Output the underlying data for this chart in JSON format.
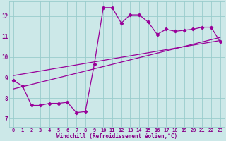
{
  "xlabel": "Windchill (Refroidissement éolien,°C)",
  "x_ticks": [
    0,
    1,
    2,
    3,
    4,
    5,
    6,
    7,
    8,
    9,
    10,
    11,
    12,
    13,
    14,
    15,
    16,
    17,
    18,
    19,
    20,
    21,
    22,
    23
  ],
  "y_ticks": [
    7,
    8,
    9,
    10,
    11,
    12
  ],
  "xlim": [
    -0.5,
    23.5
  ],
  "ylim": [
    6.6,
    12.7
  ],
  "bg_color": "#cce8e8",
  "line_color": "#990099",
  "marker": "D",
  "markersize": 2.2,
  "linewidth": 0.9,
  "main_series_x": [
    0,
    1,
    2,
    3,
    4,
    5,
    6,
    7,
    8,
    9,
    10,
    11,
    12,
    13,
    14,
    15,
    16,
    17,
    18,
    19,
    20,
    21,
    22,
    23
  ],
  "main_series_y": [
    8.85,
    8.6,
    7.65,
    7.65,
    7.75,
    7.75,
    7.8,
    7.3,
    7.35,
    9.65,
    12.4,
    12.4,
    11.65,
    12.05,
    12.05,
    11.7,
    11.1,
    11.35,
    11.25,
    11.3,
    11.35,
    11.45,
    11.45,
    10.75
  ],
  "trend1_x": [
    0,
    23
  ],
  "trend1_y": [
    9.1,
    10.8
  ],
  "trend2_x": [
    0,
    23
  ],
  "trend2_y": [
    8.45,
    10.95
  ],
  "grid_color": "#99cccc",
  "font_color": "#880088",
  "tick_fontsize": 5.0,
  "xlabel_fontsize": 5.5
}
